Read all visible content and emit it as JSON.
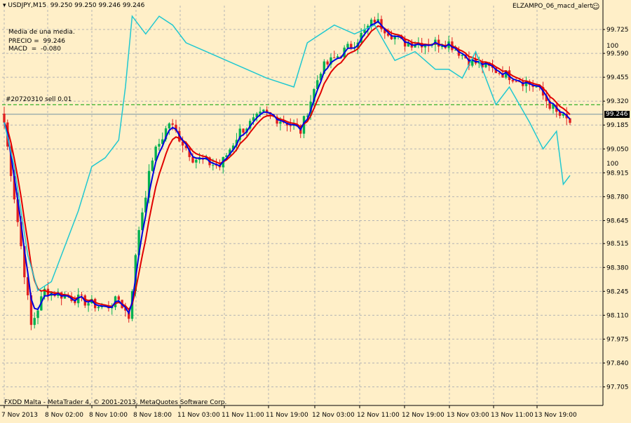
{
  "header": {
    "symbol_line": "▾ USDJPY,M15  99.250 99.250 99.246 99.246",
    "indicator_name": "ELZAMPO_06_macd_alert",
    "indicator_icon": "smiley-icon"
  },
  "info": {
    "line1": "Media de una media.",
    "line2": "PRECIO =  99.246",
    "line3": "MACD  =  -0.080"
  },
  "order_label": "#20720310 sell 0.01",
  "current_price": "99.246",
  "footer": "FXDD Malta - MetaTrader 4, © 2001-2013, MetaQuotes Software Corp.",
  "colors": {
    "background": "#FFEFC8",
    "grid": "#B4B4B4",
    "bull": "#00B050",
    "bear": "#E02020",
    "fast_ma": "#0000E0",
    "slow_ma": "#E00000",
    "macd_line": "#20C8D0",
    "order_line": "#00A000",
    "price_line": "#7090A0"
  },
  "chart_data": {
    "type": "line",
    "x_ticks": [
      "7 Nov 2013",
      "8 Nov 02:00",
      "8 Nov 10:00",
      "8 Nov 18:00",
      "11 Nov 03:00",
      "11 Nov 11:00",
      "11 Nov 19:00",
      "12 Nov 03:00",
      "12 Nov 11:00",
      "12 Nov 19:00",
      "13 Nov 03:00",
      "13 Nov 11:00",
      "13 Nov 19:00"
    ],
    "y_ticks": [
      "99.725",
      "99.590",
      "99.455",
      "99.320",
      "99.185",
      "99.050",
      "98.915",
      "98.780",
      "98.645",
      "98.515",
      "98.380",
      "98.245",
      "98.110",
      "97.975",
      "97.840",
      "97.705"
    ],
    "ylim": [
      97.6,
      99.86
    ],
    "macd_scale_labels": [
      "100",
      "100"
    ],
    "order_price": 99.3,
    "current_price": 99.246,
    "anchors": [
      [
        0,
        99.2
      ],
      [
        5,
        98.5
      ],
      [
        8,
        98.05
      ],
      [
        12,
        98.25
      ],
      [
        22,
        98.2
      ],
      [
        30,
        98.15
      ],
      [
        34,
        98.2
      ],
      [
        37,
        98.1
      ],
      [
        40,
        98.6
      ],
      [
        44,
        99.0
      ],
      [
        49,
        99.2
      ],
      [
        56,
        99.0
      ],
      [
        64,
        98.95
      ],
      [
        70,
        99.15
      ],
      [
        77,
        99.25
      ],
      [
        84,
        99.2
      ],
      [
        88,
        99.15
      ],
      [
        94,
        99.5
      ],
      [
        104,
        99.65
      ],
      [
        110,
        99.78
      ],
      [
        118,
        99.65
      ],
      [
        124,
        99.65
      ],
      [
        132,
        99.65
      ],
      [
        138,
        99.55
      ],
      [
        145,
        99.5
      ],
      [
        152,
        99.45
      ],
      [
        158,
        99.4
      ],
      [
        164,
        99.25
      ],
      [
        168,
        99.2
      ]
    ],
    "macd_line_y": [
      99.2,
      98.95,
      98.45,
      98.25,
      98.3,
      98.5,
      98.7,
      98.95,
      99.0,
      99.1,
      99.4,
      99.8,
      99.7,
      99.8,
      99.75,
      99.65,
      99.6,
      99.55,
      99.5,
      99.45,
      99.4,
      99.65,
      99.75,
      99.7,
      99.75,
      99.55,
      99.6,
      99.5,
      99.5,
      99.45,
      99.6,
      99.3,
      99.4,
      99.2,
      99.05,
      99.15,
      98.85,
      98.9
    ],
    "macd_line_x_index": [
      0,
      3,
      7,
      10,
      14,
      18,
      22,
      26,
      30,
      34,
      36,
      38,
      42,
      46,
      50,
      54,
      60,
      66,
      72,
      78,
      86,
      90,
      98,
      104,
      110,
      116,
      122,
      128,
      132,
      136,
      140,
      146,
      150,
      156,
      160,
      164,
      166,
      168
    ],
    "candle_count": 169
  }
}
